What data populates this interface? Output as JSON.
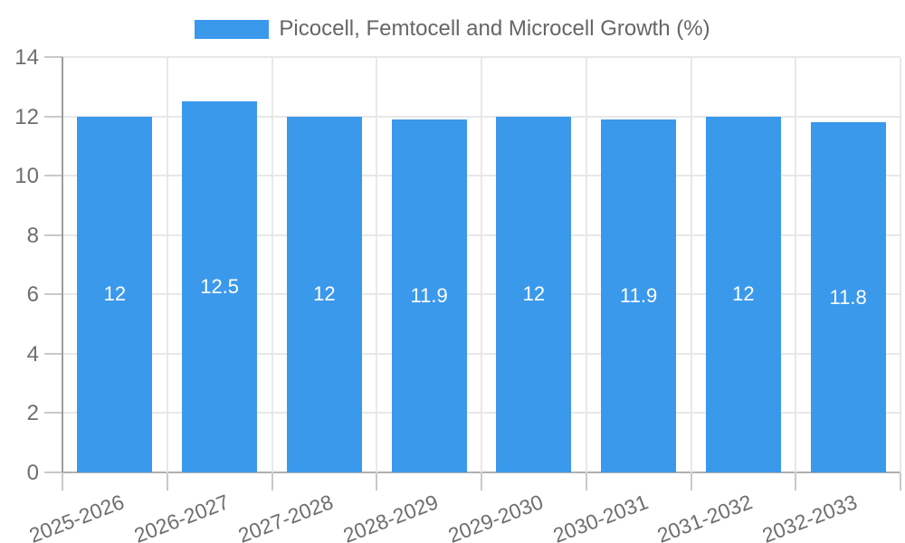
{
  "legend": {
    "label": "Picocell, Femtocell and Microcell Growth (%)",
    "swatch_color": "#3b99ec"
  },
  "chart_data": {
    "type": "bar",
    "title": "Picocell, Femtocell and Microcell Growth (%)",
    "categories": [
      "2025-2026",
      "2026-2027",
      "2027-2028",
      "2028-2029",
      "2029-2030",
      "2030-2031",
      "2031-2032",
      "2032-2033"
    ],
    "values": [
      12,
      12.5,
      12,
      11.9,
      12,
      11.9,
      12,
      11.8
    ],
    "bar_value_labels": [
      "12",
      "12.5",
      "12",
      "11.9",
      "12",
      "11.9",
      "12",
      "11.8"
    ],
    "xlabel": "",
    "ylabel": "",
    "ylim": [
      0,
      14
    ],
    "yticks": [
      0,
      2,
      4,
      6,
      8,
      10,
      12,
      14
    ],
    "grid": true,
    "legend_position": "top",
    "bar_color": "#3b99ec",
    "value_label_color": "#ffffff"
  },
  "colors": {
    "bar": "#3b99ec",
    "grid": "#e8e8e8",
    "axis": "#9e9e9e",
    "tick_text": "#6e6e6e",
    "legend_text": "#666666",
    "background": "#ffffff"
  }
}
